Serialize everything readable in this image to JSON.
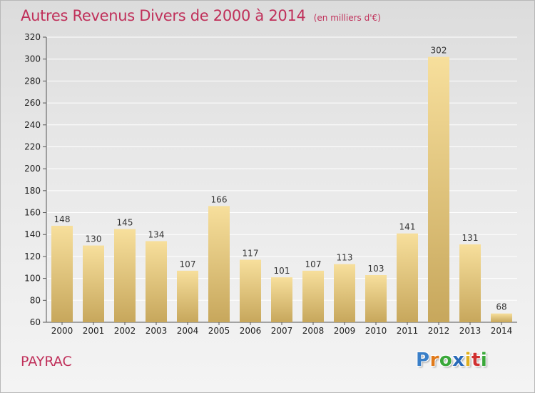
{
  "header": {
    "title": "Autres Revenus Divers de 2000 à 2014",
    "subtitle": "(en milliers d'€)"
  },
  "footer": {
    "place": "PAYRAC",
    "brand_letters": [
      {
        "char": "P",
        "color": "#3a7fc8"
      },
      {
        "char": "r",
        "color": "#e07a1a"
      },
      {
        "char": "o",
        "color": "#3aa83a"
      },
      {
        "char": "x",
        "color": "#2a6ab8"
      },
      {
        "char": "i",
        "color": "#e0b020"
      },
      {
        "char": "t",
        "color": "#d03030"
      },
      {
        "char": "i",
        "color": "#3aa83a"
      }
    ]
  },
  "colors": {
    "title": "#c0305a",
    "bar_light": "#f7df9c",
    "bar_dark": "#c7a75c",
    "grid": "#ffffff"
  },
  "chart_data": {
    "type": "bar",
    "title": "Autres Revenus Divers de 2000 à 2014",
    "subtitle": "(en milliers d'€)",
    "categories": [
      "2000",
      "2001",
      "2002",
      "2003",
      "2004",
      "2005",
      "2006",
      "2007",
      "2008",
      "2009",
      "2010",
      "2011",
      "2012",
      "2013",
      "2014"
    ],
    "values": [
      148,
      130,
      145,
      134,
      107,
      166,
      117,
      101,
      107,
      113,
      103,
      141,
      302,
      131,
      68
    ],
    "ylim": [
      60,
      320
    ],
    "yticks": [
      60,
      80,
      100,
      120,
      140,
      160,
      180,
      200,
      220,
      240,
      260,
      280,
      300,
      320
    ],
    "xlabel": "",
    "ylabel": "",
    "grid": true,
    "data_labels": true
  }
}
